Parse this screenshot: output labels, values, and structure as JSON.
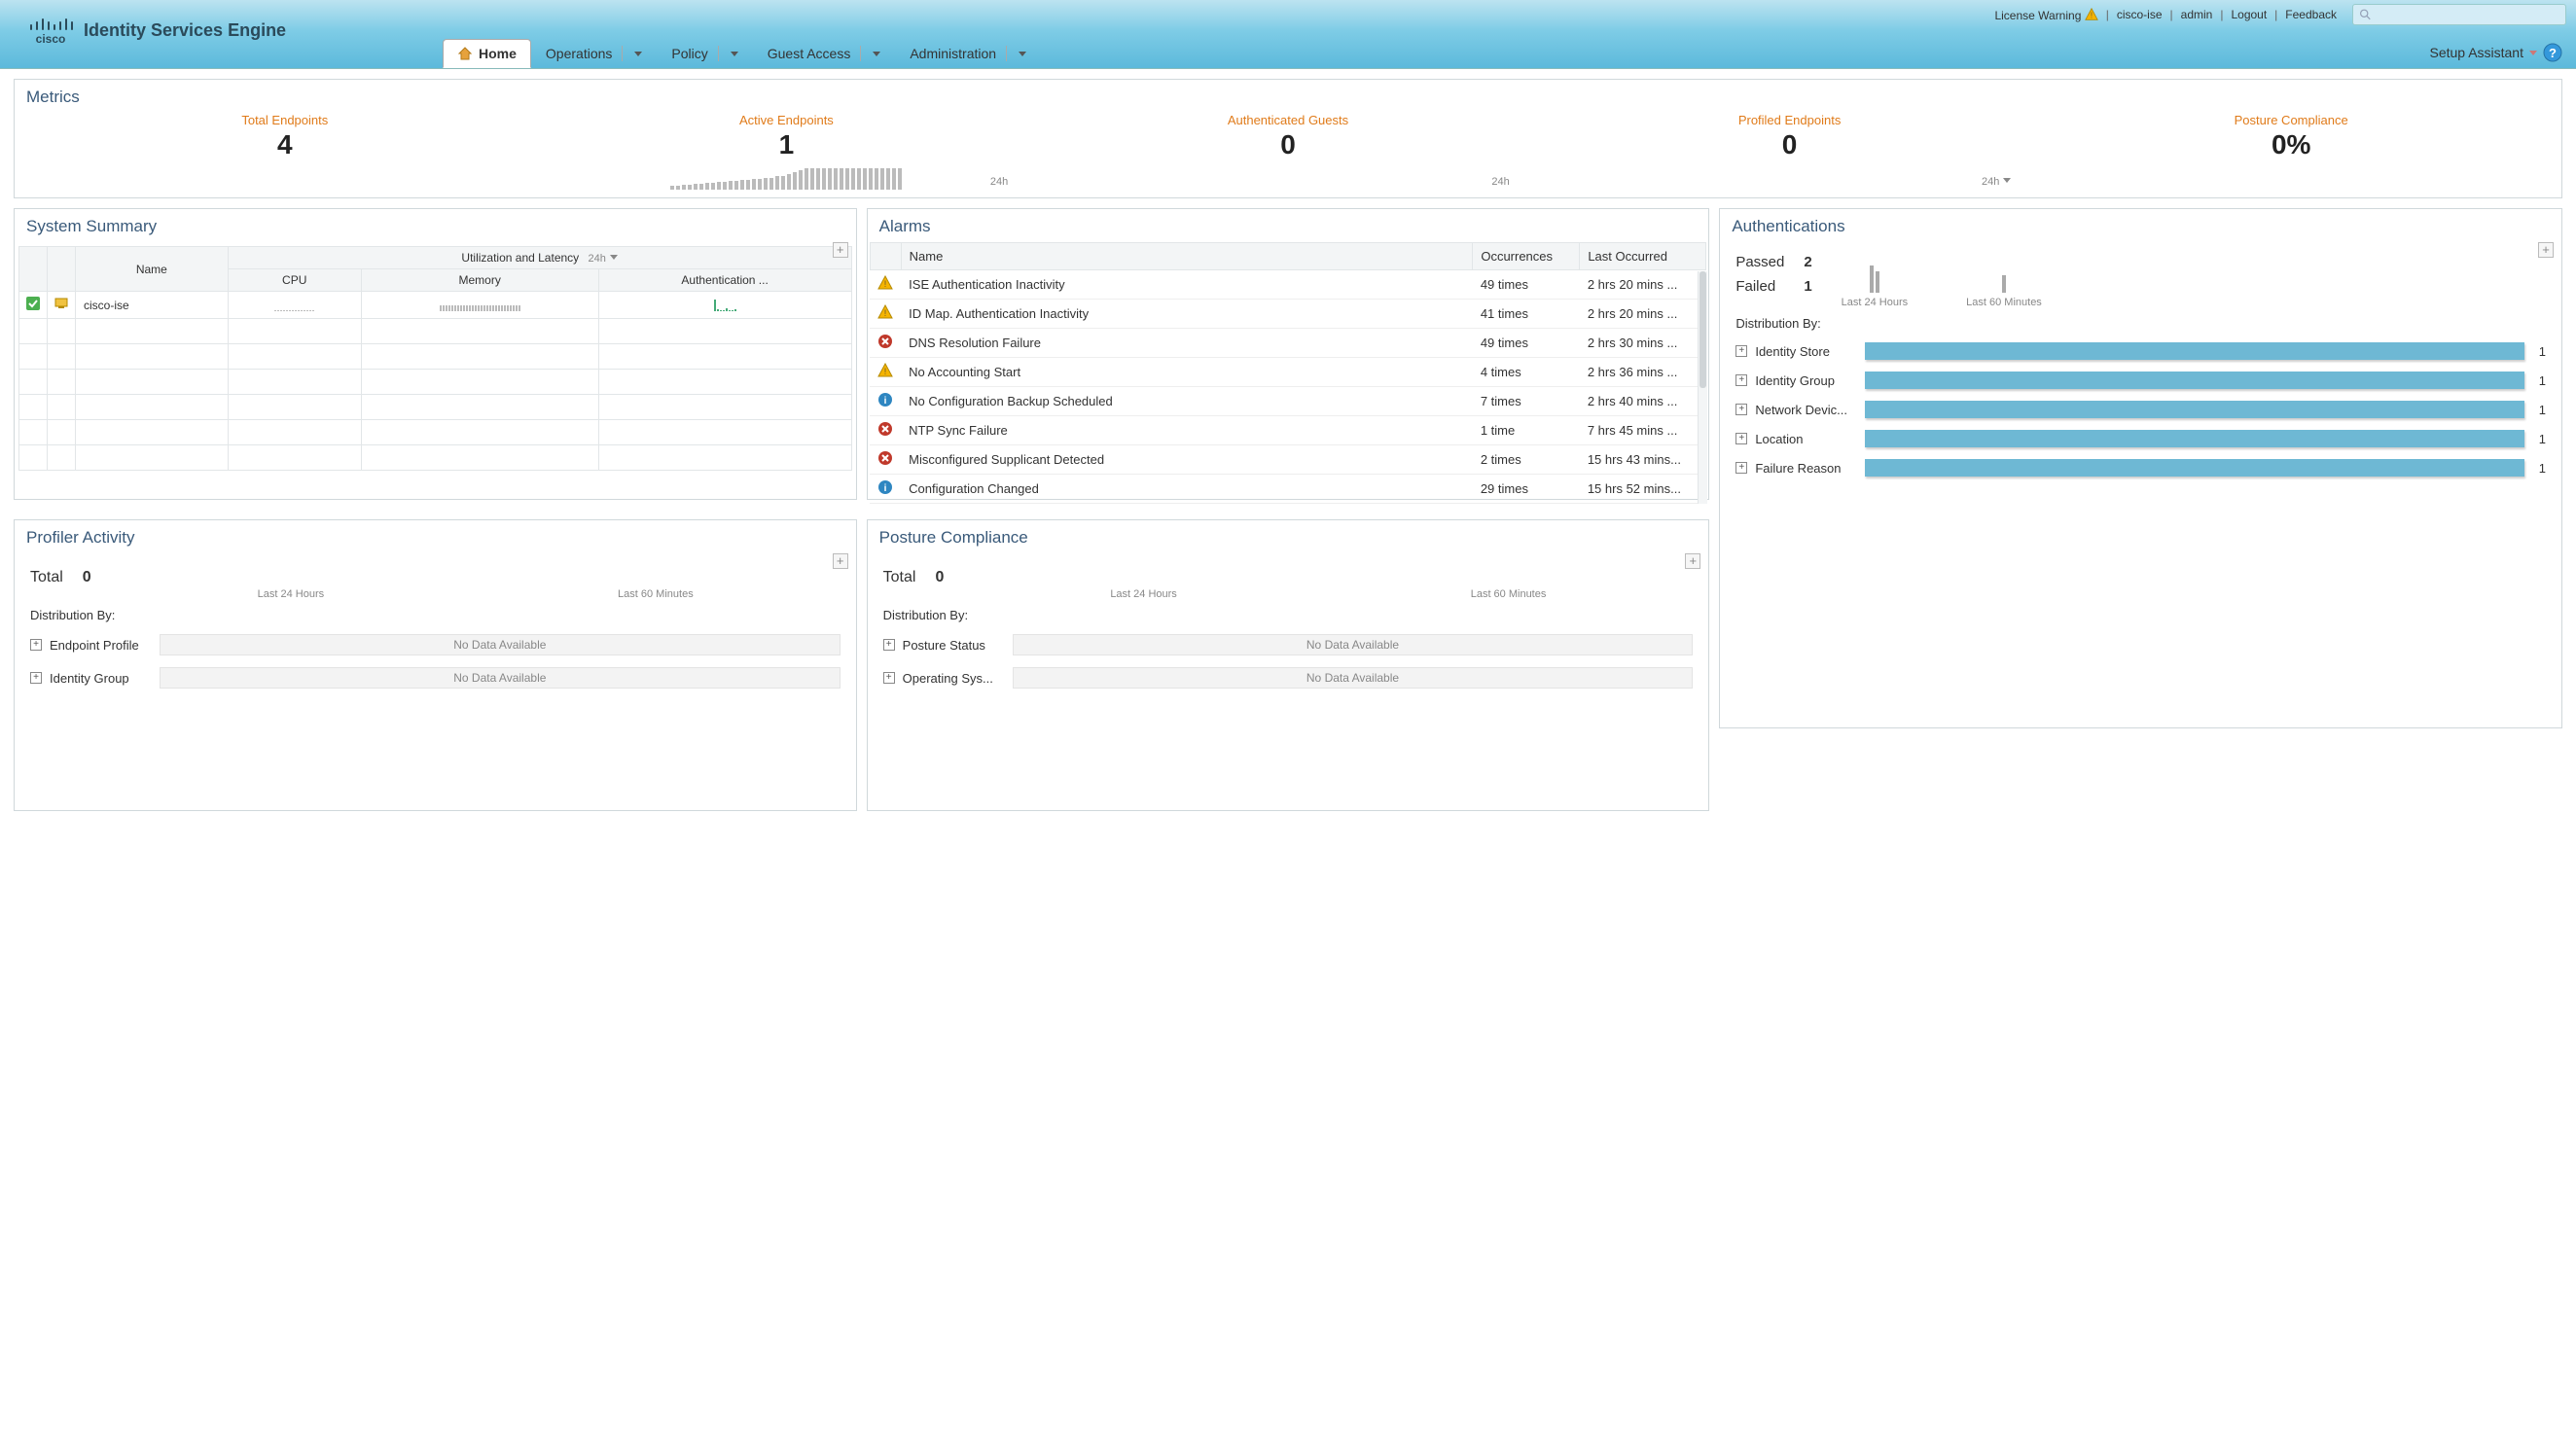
{
  "topbar": {
    "license_warning": "License Warning",
    "node": "cisco-ise",
    "user": "admin",
    "logout": "Logout",
    "feedback": "Feedback",
    "search_placeholder": "",
    "setup_assistant": "Setup Assistant"
  },
  "brand": {
    "product": "Identity Services Engine",
    "logo_text": "cisco"
  },
  "nav": {
    "home": "Home",
    "operations": "Operations",
    "policy": "Policy",
    "guest": "Guest Access",
    "admin": "Administration"
  },
  "metrics": {
    "title": "Metrics",
    "items": [
      {
        "label": "Total Endpoints",
        "value": "4",
        "time": "",
        "spark": []
      },
      {
        "label": "Active Endpoints",
        "value": "1",
        "time": "24h",
        "spark": [
          4,
          4,
          5,
          5,
          6,
          6,
          7,
          7,
          8,
          8,
          9,
          9,
          10,
          10,
          11,
          11,
          12,
          12,
          14,
          14,
          16,
          18,
          20,
          22,
          22,
          22,
          22,
          22,
          22,
          22,
          22,
          22,
          22,
          22,
          22,
          22,
          22,
          22,
          22,
          22
        ]
      },
      {
        "label": "Authenticated Guests",
        "value": "0",
        "time": "24h",
        "spark": []
      },
      {
        "label": "Profiled Endpoints",
        "value": "0",
        "time": "24h",
        "spark": [],
        "dd": true
      },
      {
        "label": "Posture Compliance",
        "value": "0%",
        "time": "",
        "spark": []
      }
    ],
    "accent_color": "#e07b1a"
  },
  "system_summary": {
    "title": "System Summary",
    "hdr_util": "Utilization and Latency",
    "hdr_time": "24h",
    "col_name": "Name",
    "col_cpu": "CPU",
    "col_mem": "Memory",
    "col_auth": "Authentication ...",
    "rows": [
      {
        "name": "cisco-ise",
        "cpu_spark": [
          1,
          1,
          1,
          1,
          1,
          1,
          1,
          1,
          1,
          1,
          1,
          1,
          1,
          1
        ],
        "mem_spark": [
          6,
          6,
          6,
          6,
          6,
          6,
          6,
          6,
          6,
          6,
          6,
          6,
          6,
          6,
          6,
          6,
          6,
          6,
          6,
          6,
          6,
          6,
          6,
          6,
          6,
          6,
          6,
          6
        ],
        "auth_spark": [
          12,
          2,
          0,
          0,
          3,
          0,
          0,
          2
        ]
      }
    ]
  },
  "alarms": {
    "title": "Alarms",
    "col_name": "Name",
    "col_occ": "Occurrences",
    "col_last": "Last Occurred",
    "rows": [
      {
        "ico": "warn",
        "name": "ISE Authentication Inactivity",
        "occ": "49 times",
        "last": "2 hrs 20 mins  ..."
      },
      {
        "ico": "warn",
        "name": "ID Map. Authentication Inactivity",
        "occ": "41 times",
        "last": "2 hrs 20 mins  ..."
      },
      {
        "ico": "err",
        "name": "DNS Resolution Failure",
        "occ": "49 times",
        "last": "2 hrs 30 mins  ..."
      },
      {
        "ico": "warn",
        "name": "No Accounting Start",
        "occ": "4 times",
        "last": "2 hrs 36 mins  ..."
      },
      {
        "ico": "info",
        "name": "No Configuration Backup Scheduled",
        "occ": "7 times",
        "last": "2 hrs 40 mins  ..."
      },
      {
        "ico": "err",
        "name": "NTP Sync Failure",
        "occ": "1 time",
        "last": "7 hrs 45 mins  ..."
      },
      {
        "ico": "err",
        "name": "Misconfigured Supplicant Detected",
        "occ": "2 times",
        "last": "15 hrs 43 mins..."
      },
      {
        "ico": "info",
        "name": "Configuration Changed",
        "occ": "29 times",
        "last": "15 hrs 52 mins..."
      }
    ],
    "colors": {
      "warn": "#f5b400",
      "err": "#c0392b",
      "info": "#2e86c1"
    }
  },
  "auth": {
    "title": "Authentications",
    "passed_label": "Passed",
    "passed": "2",
    "failed_label": "Failed",
    "failed": "1",
    "spark24_label": "Last 24 Hours",
    "spark60_label": "Last 60 Minutes",
    "spark24": [
      28,
      22
    ],
    "spark60": [
      18
    ],
    "distby_label": "Distribution By:",
    "dist": [
      {
        "label": "Identity Store",
        "count": "1"
      },
      {
        "label": "Identity Group",
        "count": "1"
      },
      {
        "label": "Network Devic...",
        "count": "1"
      },
      {
        "label": "Location",
        "count": "1"
      },
      {
        "label": "Failure Reason",
        "count": "1"
      }
    ],
    "bar_color": "#6eb8d4"
  },
  "profiler": {
    "title": "Profiler Activity",
    "total_label": "Total",
    "total": "0",
    "spark24_label": "Last 24 Hours",
    "spark60_label": "Last 60 Minutes",
    "distby_label": "Distribution By:",
    "nodata": "No Data Available",
    "dist": [
      {
        "label": "Endpoint Profile"
      },
      {
        "label": "Identity Group"
      }
    ]
  },
  "posture": {
    "title": "Posture Compliance",
    "total_label": "Total",
    "total": "0",
    "spark24_label": "Last 24 Hours",
    "spark60_label": "Last 60 Minutes",
    "distby_label": "Distribution By:",
    "nodata": "No Data Available",
    "dist": [
      {
        "label": "Posture Status"
      },
      {
        "label": "Operating Sys..."
      }
    ]
  }
}
